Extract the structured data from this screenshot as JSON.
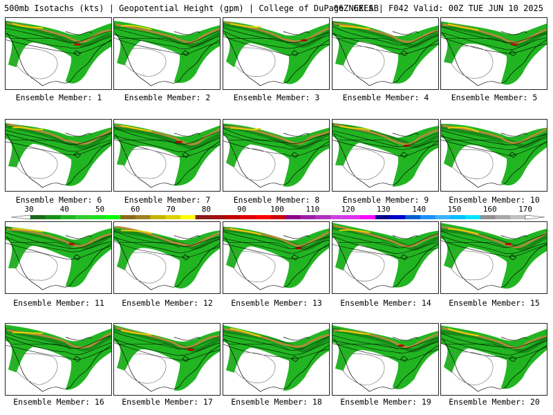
{
  "header": {
    "title_left": "500mb Isotachs (kts) | Geopotential Height (gpm) | College of DuPage NEXLAB",
    "title_right": "06Z GEFS | F042 Valid: 00Z TUE JUN 10 2025"
  },
  "member_label_prefix": "Ensemble Member: ",
  "members": [
    {
      "num": "1",
      "label": "Ensemble Member: 1"
    },
    {
      "num": "2",
      "label": "Ensemble Member: 2"
    },
    {
      "num": "3",
      "label": "Ensemble Member: 3"
    },
    {
      "num": "4",
      "label": "Ensemble Member: 4"
    },
    {
      "num": "5",
      "label": "Ensemble Member: 5"
    },
    {
      "num": "6",
      "label": "Ensemble Member: 6"
    },
    {
      "num": "7",
      "label": "Ensemble Member: 7"
    },
    {
      "num": "8",
      "label": "Ensemble Member: 8"
    },
    {
      "num": "9",
      "label": "Ensemble Member: 9"
    },
    {
      "num": "10",
      "label": "Ensemble Member: 10"
    },
    {
      "num": "11",
      "label": "Ensemble Member: 11"
    },
    {
      "num": "12",
      "label": "Ensemble Member: 12"
    },
    {
      "num": "13",
      "label": "Ensemble Member: 13"
    },
    {
      "num": "14",
      "label": "Ensemble Member: 14"
    },
    {
      "num": "15",
      "label": "Ensemble Member: 15"
    },
    {
      "num": "16",
      "label": "Ensemble Member: 16"
    },
    {
      "num": "17",
      "label": "Ensemble Member: 17"
    },
    {
      "num": "18",
      "label": "Ensemble Member: 18"
    },
    {
      "num": "19",
      "label": "Ensemble Member: 19"
    },
    {
      "num": "20",
      "label": "Ensemble Member: 20"
    }
  ],
  "colorbar": {
    "labels": [
      "30",
      "40",
      "50",
      "60",
      "70",
      "80",
      "90",
      "100",
      "110",
      "120",
      "130",
      "140",
      "150",
      "160",
      "170"
    ],
    "colors": [
      "#1a6b1a",
      "#169016",
      "#22b522",
      "#33cc33",
      "#1fe01f",
      "#00ff00",
      "#8b6a1a",
      "#a08020",
      "#c4b400",
      "#e0d000",
      "#ffff00",
      "#8b1a1a",
      "#a01010",
      "#c00000",
      "#e00000",
      "#ff0000",
      "#cc0000",
      "#8b008b",
      "#9b1fa8",
      "#b030c0",
      "#cc44dd",
      "#dd33ee",
      "#ff00ff",
      "#00008b",
      "#0000cd",
      "#0060d0",
      "#1e90ff",
      "#40b0ff",
      "#00bfff",
      "#00e5ff",
      "#909090",
      "#a8a8a8",
      "#c0c0c0"
    ]
  },
  "colors": {
    "wind_green": "#22b522",
    "wind_green_dark": "#168a16",
    "jet_tan": "#b08a3a",
    "jet_yellow": "#e8d200",
    "jet_red": "#c00000",
    "land_white": "#ffffff",
    "coast": "#000000",
    "height_contour": "#7a7a7a"
  }
}
